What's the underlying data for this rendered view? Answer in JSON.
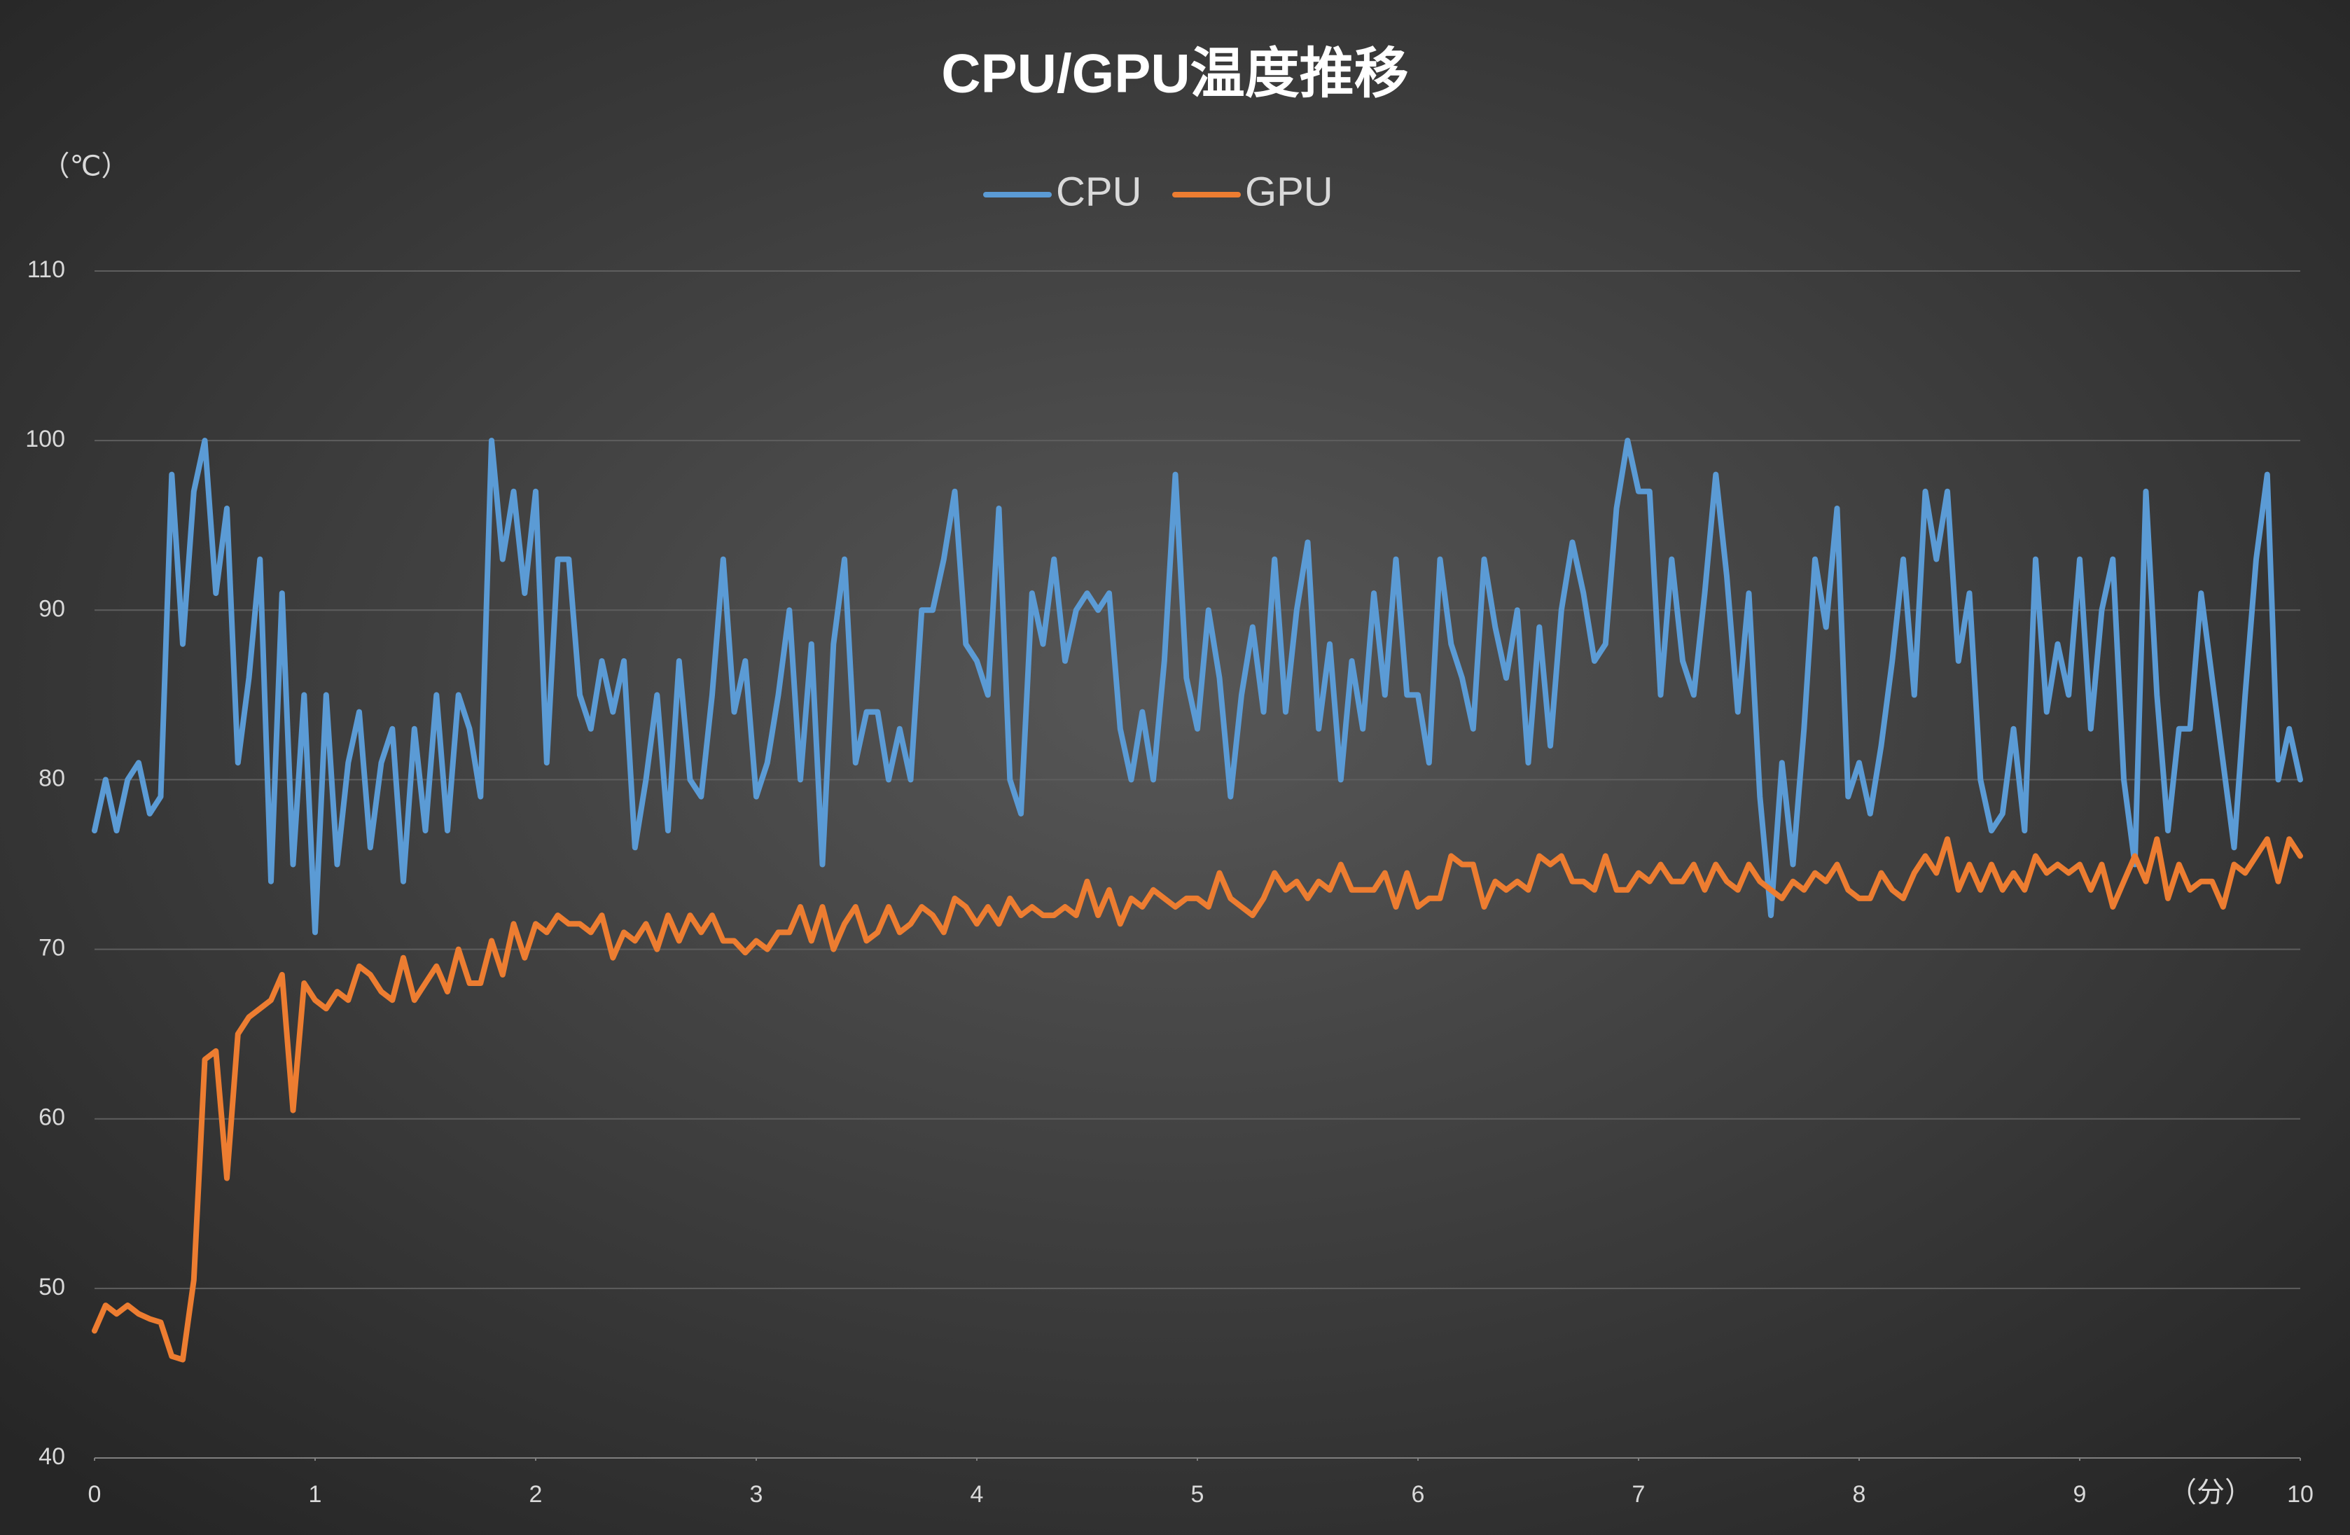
{
  "chart_data": {
    "type": "line",
    "title": "CPU/GPU温度推移",
    "y_label": "（℃）",
    "x_label": "（分）",
    "xlim": [
      0,
      10
    ],
    "xticks": [
      0,
      1,
      2,
      3,
      4,
      5,
      6,
      7,
      8,
      9,
      10
    ],
    "ylim": [
      40,
      110
    ],
    "yticks": [
      40,
      50,
      60,
      70,
      80,
      90,
      100,
      110
    ],
    "grid": true,
    "legend": "top",
    "x": [
      0,
      0.05,
      0.1,
      0.15,
      0.2,
      0.25,
      0.3,
      0.35,
      0.4,
      0.45,
      0.5,
      0.55,
      0.6,
      0.65,
      0.7,
      0.75,
      0.8,
      0.85,
      0.9,
      0.95,
      1,
      1.05,
      1.1,
      1.15,
      1.2,
      1.25,
      1.3,
      1.35,
      1.4,
      1.45,
      1.5,
      1.55,
      1.6,
      1.65,
      1.7,
      1.75,
      1.8,
      1.85,
      1.9,
      1.95,
      2,
      2.05,
      2.1,
      2.15,
      2.2,
      2.25,
      2.3,
      2.35,
      2.4,
      2.45,
      2.5,
      2.55,
      2.6,
      2.65,
      2.7,
      2.75,
      2.8,
      2.85,
      2.9,
      2.95,
      3,
      3.05,
      3.1,
      3.15,
      3.2,
      3.25,
      3.3,
      3.35,
      3.4,
      3.45,
      3.5,
      3.55,
      3.6,
      3.65,
      3.7,
      3.75,
      3.8,
      3.85,
      3.9,
      3.95,
      4,
      4.05,
      4.1,
      4.15,
      4.2,
      4.25,
      4.3,
      4.35,
      4.4,
      4.45,
      4.5,
      4.55,
      4.6,
      4.65,
      4.7,
      4.75,
      4.8,
      4.85,
      4.9,
      4.95,
      5,
      5.05,
      5.1,
      5.15,
      5.2,
      5.25,
      5.3,
      5.35,
      5.4,
      5.45,
      5.5,
      5.55,
      5.6,
      5.65,
      5.7,
      5.75,
      5.8,
      5.85,
      5.9,
      5.95,
      6,
      6.05,
      6.1,
      6.15,
      6.2,
      6.25,
      6.3,
      6.35,
      6.4,
      6.45,
      6.5,
      6.55,
      6.6,
      6.65,
      6.7,
      6.75,
      6.8,
      6.85,
      6.9,
      6.95,
      7,
      7.05,
      7.1,
      7.15,
      7.2,
      7.25,
      7.3,
      7.35,
      7.4,
      7.45,
      7.5,
      7.55,
      7.6,
      7.65,
      7.7,
      7.75,
      7.8,
      7.85,
      7.9,
      7.95,
      8,
      8.05,
      8.1,
      8.15,
      8.2,
      8.25,
      8.3,
      8.35,
      8.4,
      8.45,
      8.5,
      8.55,
      8.6,
      8.65,
      8.7,
      8.75,
      8.8,
      8.85,
      8.9,
      8.95,
      9,
      9.05,
      9.1,
      9.15,
      9.2,
      9.25,
      9.3,
      9.35,
      9.4,
      9.45,
      9.5,
      9.55,
      9.6,
      9.65,
      9.7,
      9.75,
      9.8,
      9.85,
      9.9,
      9.95,
      10
    ],
    "series": [
      {
        "name": "CPU",
        "color": "#5b9bd5",
        "values": [
          77,
          80,
          77,
          80,
          81,
          78,
          79,
          98,
          88,
          97,
          100,
          91,
          96,
          81,
          86,
          93,
          74,
          91,
          75,
          85,
          71,
          85,
          75,
          81,
          84,
          76,
          81,
          83,
          74,
          83,
          77,
          85,
          77,
          85,
          83,
          79,
          100,
          93,
          97,
          91,
          97,
          81,
          93,
          93,
          85,
          83,
          87,
          84,
          87,
          76,
          80,
          85,
          77,
          87,
          80,
          79,
          85,
          93,
          84,
          87,
          79,
          81,
          85,
          90,
          80,
          88,
          75,
          88,
          93,
          81,
          84,
          84,
          80,
          83,
          80,
          90,
          90,
          93,
          97,
          88,
          87,
          85,
          96,
          80,
          78,
          91,
          88,
          93,
          87,
          90,
          91,
          90,
          91,
          83,
          80,
          84,
          80,
          87,
          98,
          86,
          83,
          90,
          86,
          79,
          85,
          89,
          84,
          93,
          84,
          90,
          94,
          83,
          88,
          80,
          87,
          83,
          91,
          85,
          93,
          85,
          85,
          81,
          93,
          88,
          86,
          83,
          93,
          89,
          86,
          90,
          81,
          89,
          82,
          90,
          94,
          91,
          87,
          88,
          96,
          100,
          97,
          97,
          85,
          93,
          87,
          85,
          91,
          98,
          92,
          84,
          91,
          79,
          72,
          81,
          75,
          83,
          93,
          89,
          96,
          79,
          81,
          78,
          82,
          87,
          93,
          85,
          97,
          93,
          97,
          87,
          91,
          80,
          77,
          78,
          83,
          77,
          93,
          84,
          88,
          85,
          93,
          83,
          90,
          93,
          80,
          75,
          97,
          85,
          77,
          83,
          83,
          91,
          86,
          81,
          76,
          85,
          93,
          98,
          80,
          83,
          80
        ]
      },
      {
        "name": "GPU",
        "color": "#ed7d31",
        "values": [
          47.5,
          49,
          48.5,
          49,
          48.5,
          48.2,
          48,
          46,
          45.8,
          50.5,
          63.5,
          64,
          56.5,
          65,
          66,
          66.5,
          67,
          68.5,
          60.5,
          68,
          67,
          66.5,
          67.5,
          67,
          69,
          68.5,
          67.5,
          67,
          69.5,
          67,
          68,
          69,
          67.5,
          70,
          68,
          68,
          70.5,
          68.5,
          71.5,
          69.5,
          71.5,
          71,
          72,
          71.5,
          71.5,
          71,
          72,
          69.5,
          71,
          70.5,
          71.5,
          70,
          72,
          70.5,
          72,
          71,
          72,
          70.5,
          70.5,
          69.8,
          70.5,
          70,
          71,
          71,
          72.5,
          70.5,
          72.5,
          70,
          71.5,
          72.5,
          70.5,
          71,
          72.5,
          71,
          71.5,
          72.5,
          72,
          71,
          73,
          72.5,
          71.5,
          72.5,
          71.5,
          73,
          72,
          72.5,
          72,
          72,
          72.5,
          72,
          74,
          72,
          73.5,
          71.5,
          73,
          72.5,
          73.5,
          73,
          72.5,
          73,
          73,
          72.5,
          74.5,
          73,
          72.5,
          72,
          73,
          74.5,
          73.5,
          74,
          73,
          74,
          73.5,
          75,
          73.5,
          73.5,
          73.5,
          74.5,
          72.5,
          74.5,
          72.5,
          73,
          73,
          75.5,
          75,
          75,
          72.5,
          74,
          73.5,
          74,
          73.5,
          75.5,
          75,
          75.5,
          74,
          74,
          73.5,
          75.5,
          73.5,
          73.5,
          74.5,
          74,
          75,
          74,
          74,
          75,
          73.5,
          75,
          74,
          73.5,
          75,
          74,
          73.5,
          73,
          74,
          73.5,
          74.5,
          74,
          75,
          73.5,
          73,
          73,
          74.5,
          73.5,
          73,
          74.5,
          75.5,
          74.5,
          76.5,
          73.5,
          75,
          73.5,
          75,
          73.5,
          74.5,
          73.5,
          75.5,
          74.5,
          75,
          74.5,
          75,
          73.5,
          75,
          72.5,
          74,
          75.5,
          74,
          76.5,
          73,
          75,
          73.5,
          74,
          74,
          72.5,
          75,
          74.5,
          75.5,
          76.5,
          74,
          76.5,
          75.5
        ]
      }
    ]
  }
}
